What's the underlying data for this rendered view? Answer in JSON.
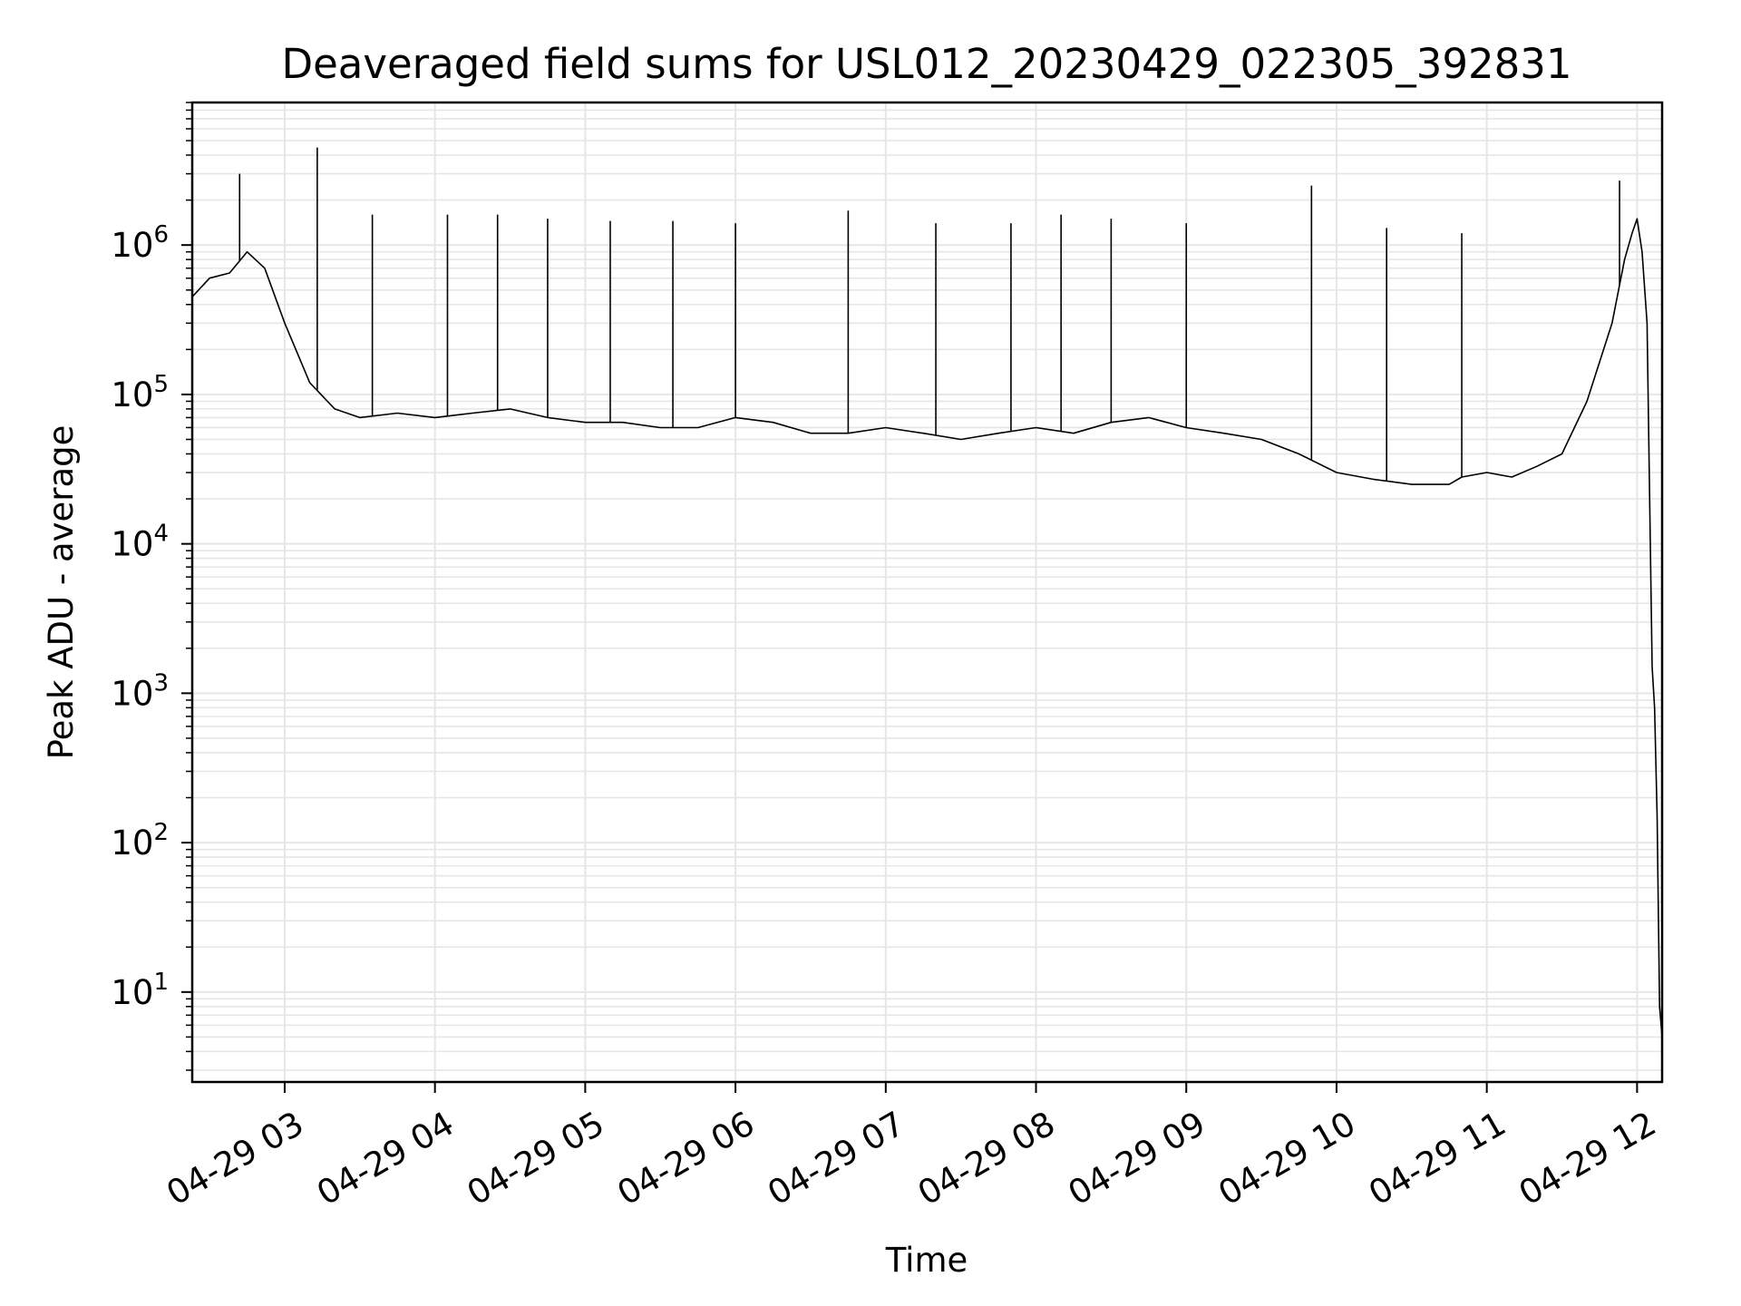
{
  "chart_data": {
    "type": "line",
    "title": "Deaveraged field sums for USL012_20230429_022305_392831",
    "xlabel": "Time",
    "ylabel": "Peak ADU - average",
    "yscale": "log",
    "ylim": [
      2.5,
      9000000
    ],
    "xlim": [
      "2023-04-29T02:23:05",
      "2023-04-29T12:10:00"
    ],
    "grid": true,
    "line_color": "#000000",
    "grid_color": "#e6e6e6",
    "x_ticks": [
      {
        "value": "2023-04-29T03:00:00",
        "label": "04-29 03"
      },
      {
        "value": "2023-04-29T04:00:00",
        "label": "04-29 04"
      },
      {
        "value": "2023-04-29T05:00:00",
        "label": "04-29 05"
      },
      {
        "value": "2023-04-29T06:00:00",
        "label": "04-29 06"
      },
      {
        "value": "2023-04-29T07:00:00",
        "label": "04-29 07"
      },
      {
        "value": "2023-04-29T08:00:00",
        "label": "04-29 08"
      },
      {
        "value": "2023-04-29T09:00:00",
        "label": "04-29 09"
      },
      {
        "value": "2023-04-29T10:00:00",
        "label": "04-29 10"
      },
      {
        "value": "2023-04-29T11:00:00",
        "label": "04-29 11"
      },
      {
        "value": "2023-04-29T12:00:00",
        "label": "04-29 12"
      }
    ],
    "y_ticks": [
      {
        "value": 10,
        "base": "10",
        "exp": "1"
      },
      {
        "value": 100,
        "base": "10",
        "exp": "2"
      },
      {
        "value": 1000,
        "base": "10",
        "exp": "3"
      },
      {
        "value": 10000,
        "base": "10",
        "exp": "4"
      },
      {
        "value": 100000,
        "base": "10",
        "exp": "5"
      },
      {
        "value": 1000000,
        "base": "10",
        "exp": "6"
      }
    ],
    "series": [
      {
        "x": [
          "2023-04-29T02:23:05",
          "2023-04-29T02:30:00",
          "2023-04-29T02:38:00",
          "2023-04-29T02:45:00",
          "2023-04-29T02:52:00",
          "2023-04-29T03:00:00",
          "2023-04-29T03:10:00",
          "2023-04-29T03:20:00",
          "2023-04-29T03:30:00",
          "2023-04-29T03:45:00",
          "2023-04-29T04:00:00",
          "2023-04-29T04:15:00",
          "2023-04-29T04:30:00",
          "2023-04-29T04:45:00",
          "2023-04-29T05:00:00",
          "2023-04-29T05:15:00",
          "2023-04-29T05:30:00",
          "2023-04-29T05:45:00",
          "2023-04-29T06:00:00",
          "2023-04-29T06:15:00",
          "2023-04-29T06:30:00",
          "2023-04-29T06:45:00",
          "2023-04-29T07:00:00",
          "2023-04-29T07:15:00",
          "2023-04-29T07:30:00",
          "2023-04-29T07:45:00",
          "2023-04-29T08:00:00",
          "2023-04-29T08:15:00",
          "2023-04-29T08:30:00",
          "2023-04-29T08:45:00",
          "2023-04-29T09:00:00",
          "2023-04-29T09:15:00",
          "2023-04-29T09:30:00",
          "2023-04-29T09:45:00",
          "2023-04-29T10:00:00",
          "2023-04-29T10:15:00",
          "2023-04-29T10:30:00",
          "2023-04-29T10:45:00",
          "2023-04-29T10:50:00",
          "2023-04-29T11:00:00",
          "2023-04-29T11:10:00",
          "2023-04-29T11:20:00",
          "2023-04-29T11:30:00",
          "2023-04-29T11:40:00",
          "2023-04-29T11:50:00",
          "2023-04-29T11:55:00",
          "2023-04-29T11:58:00",
          "2023-04-29T12:00:00",
          "2023-04-29T12:02:00",
          "2023-04-29T12:04:00",
          "2023-04-29T12:06:00",
          "2023-04-29T12:07:00",
          "2023-04-29T12:08:00",
          "2023-04-29T12:09:00",
          "2023-04-29T12:10:00"
        ],
        "y": [
          450000,
          600000,
          650000,
          900000,
          700000,
          300000,
          120000,
          80000,
          70000,
          75000,
          70000,
          75000,
          80000,
          70000,
          65000,
          65000,
          60000,
          60000,
          70000,
          65000,
          55000,
          55000,
          60000,
          55000,
          50000,
          55000,
          60000,
          55000,
          65000,
          70000,
          60000,
          55000,
          50000,
          40000,
          30000,
          27000,
          25000,
          25000,
          28000,
          30000,
          28000,
          33000,
          40000,
          90000,
          300000,
          800000,
          1200000,
          1500000,
          900000,
          300000,
          1500,
          800,
          150,
          8,
          5
        ],
        "spikes": [
          {
            "x": "2023-04-29T02:42:00",
            "y": 3000000
          },
          {
            "x": "2023-04-29T03:13:00",
            "y": 4500000
          },
          {
            "x": "2023-04-29T03:35:00",
            "y": 1600000
          },
          {
            "x": "2023-04-29T04:05:00",
            "y": 1600000
          },
          {
            "x": "2023-04-29T04:25:00",
            "y": 1600000
          },
          {
            "x": "2023-04-29T04:45:00",
            "y": 1500000
          },
          {
            "x": "2023-04-29T05:10:00",
            "y": 1450000
          },
          {
            "x": "2023-04-29T05:35:00",
            "y": 1450000
          },
          {
            "x": "2023-04-29T06:00:00",
            "y": 1400000
          },
          {
            "x": "2023-04-29T06:45:00",
            "y": 1700000
          },
          {
            "x": "2023-04-29T07:20:00",
            "y": 1400000
          },
          {
            "x": "2023-04-29T07:50:00",
            "y": 1400000
          },
          {
            "x": "2023-04-29T08:10:00",
            "y": 1600000
          },
          {
            "x": "2023-04-29T08:30:00",
            "y": 1500000
          },
          {
            "x": "2023-04-29T09:00:00",
            "y": 1400000
          },
          {
            "x": "2023-04-29T09:50:00",
            "y": 2500000
          },
          {
            "x": "2023-04-29T10:20:00",
            "y": 1300000
          },
          {
            "x": "2023-04-29T10:50:00",
            "y": 1200000
          },
          {
            "x": "2023-04-29T11:53:00",
            "y": 2700000
          }
        ]
      }
    ]
  }
}
